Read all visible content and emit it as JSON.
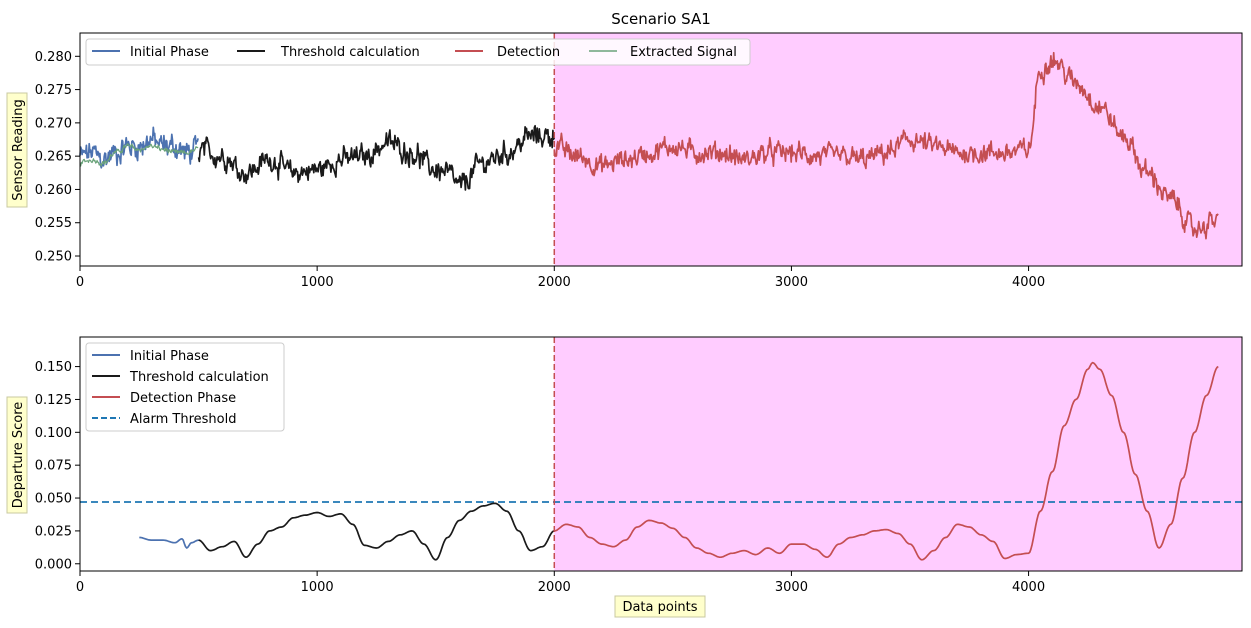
{
  "colors": {
    "initial": "#4c72b0",
    "threshold_calc": "#1a1a1a",
    "detection": "#c44e52",
    "extracted": "#6aa37a",
    "alarm": "#1f77b4",
    "shade": "#ffccff",
    "vline": "#c44e52"
  },
  "chart_data": [
    {
      "type": "line",
      "title": "Scenario SA1",
      "xlabel": "",
      "ylabel": "Sensor Reading",
      "xlim": [
        0,
        4900
      ],
      "ylim": [
        0.2485,
        0.2835
      ],
      "x_ticks": [
        0,
        1000,
        2000,
        3000,
        4000
      ],
      "y_ticks": [
        0.25,
        0.255,
        0.26,
        0.265,
        0.27,
        0.275,
        0.28
      ],
      "y_tick_labels": [
        "0.250",
        "0.255",
        "0.260",
        "0.265",
        "0.270",
        "0.275",
        "0.280"
      ],
      "shaded_region": [
        2000,
        4900
      ],
      "vertical_line": 2000,
      "legend": {
        "placement": "top-left",
        "entries": [
          "Initial Phase",
          "Threshold calculation",
          "Detection",
          "Extracted Signal"
        ]
      },
      "series": [
        {
          "name": "Initial Phase",
          "x": [
            0,
            50,
            100,
            150,
            200,
            250,
            300,
            350,
            400,
            450,
            500
          ],
          "y": [
            0.265,
            0.2655,
            0.2645,
            0.2655,
            0.2665,
            0.2665,
            0.2675,
            0.2665,
            0.2665,
            0.2655,
            0.266
          ],
          "noise": 0.0018
        },
        {
          "name": "Extracted Signal",
          "x": [
            0,
            50,
            100,
            150,
            200,
            250,
            300,
            350,
            400,
            450,
            500
          ],
          "y": [
            0.264,
            0.2645,
            0.264,
            0.2655,
            0.2665,
            0.266,
            0.2665,
            0.266,
            0.2655,
            0.2655,
            0.266
          ],
          "noise": 0.0004
        },
        {
          "name": "Threshold calculation",
          "x": [
            500,
            600,
            700,
            800,
            900,
            1000,
            1100,
            1200,
            1300,
            1400,
            1500,
            1550,
            1600,
            1700,
            1800,
            1900,
            2000
          ],
          "y": [
            0.266,
            0.265,
            0.2625,
            0.2645,
            0.2625,
            0.263,
            0.2645,
            0.265,
            0.267,
            0.2655,
            0.263,
            0.2625,
            0.2605,
            0.264,
            0.2655,
            0.268,
            0.268
          ],
          "noise": 0.0016
        },
        {
          "name": "Detection",
          "x": [
            2000,
            2100,
            2200,
            2300,
            2400,
            2500,
            2600,
            2700,
            2800,
            2900,
            3000,
            3100,
            3200,
            3300,
            3400,
            3500,
            3600,
            3700,
            3800,
            3900,
            4000,
            4050,
            4100,
            4200,
            4300,
            4400,
            4500,
            4600,
            4700,
            4800
          ],
          "y": [
            0.2665,
            0.265,
            0.2635,
            0.2645,
            0.2655,
            0.2665,
            0.2655,
            0.2655,
            0.2645,
            0.2655,
            0.2655,
            0.265,
            0.265,
            0.2645,
            0.2655,
            0.2675,
            0.2665,
            0.2655,
            0.2655,
            0.2655,
            0.266,
            0.278,
            0.2795,
            0.276,
            0.2725,
            0.268,
            0.2625,
            0.2585,
            0.254,
            0.2555
          ],
          "noise": 0.0015
        }
      ]
    },
    {
      "type": "line",
      "title": "",
      "xlabel": "Data points",
      "ylabel": "Departure Score",
      "xlim": [
        0,
        4900
      ],
      "ylim": [
        -0.0055,
        0.1725
      ],
      "x_ticks": [
        0,
        1000,
        2000,
        3000,
        4000
      ],
      "y_ticks": [
        0.0,
        0.025,
        0.05,
        0.075,
        0.1,
        0.125,
        0.15
      ],
      "y_tick_labels": [
        "0.000",
        "0.025",
        "0.050",
        "0.075",
        "0.100",
        "0.125",
        "0.150"
      ],
      "shaded_region": [
        2000,
        4900
      ],
      "vertical_line": 2000,
      "alarm_threshold": 0.047,
      "legend": {
        "placement": "top-left",
        "entries": [
          "Initial Phase",
          "Threshold calculation",
          "Detection Phase",
          "Alarm Threshold"
        ]
      },
      "series": [
        {
          "name": "Initial Phase",
          "x": [
            250,
            300,
            350,
            400,
            430,
            450,
            470,
            500
          ],
          "y": [
            0.02,
            0.018,
            0.018,
            0.016,
            0.019,
            0.012,
            0.016,
            0.018
          ]
        },
        {
          "name": "Threshold calculation",
          "x": [
            500,
            550,
            600,
            650,
            700,
            750,
            800,
            850,
            900,
            950,
            1000,
            1050,
            1100,
            1150,
            1200,
            1250,
            1300,
            1350,
            1400,
            1450,
            1500,
            1550,
            1600,
            1650,
            1700,
            1750,
            1800,
            1850,
            1900,
            1950,
            2000
          ],
          "y": [
            0.018,
            0.01,
            0.013,
            0.017,
            0.005,
            0.015,
            0.025,
            0.028,
            0.035,
            0.037,
            0.039,
            0.036,
            0.038,
            0.03,
            0.014,
            0.012,
            0.017,
            0.022,
            0.025,
            0.015,
            0.003,
            0.02,
            0.033,
            0.04,
            0.044,
            0.046,
            0.04,
            0.025,
            0.01,
            0.013,
            0.025
          ]
        },
        {
          "name": "Detection Phase",
          "x": [
            2000,
            2050,
            2100,
            2150,
            2200,
            2250,
            2300,
            2350,
            2400,
            2450,
            2500,
            2550,
            2600,
            2650,
            2700,
            2750,
            2800,
            2850,
            2900,
            2950,
            3000,
            3050,
            3100,
            3150,
            3200,
            3250,
            3300,
            3350,
            3400,
            3450,
            3500,
            3550,
            3600,
            3650,
            3700,
            3750,
            3800,
            3850,
            3900,
            3950,
            4000,
            4050,
            4100,
            4150,
            4200,
            4250,
            4270,
            4300,
            4350,
            4400,
            4450,
            4500,
            4550,
            4600,
            4650,
            4700,
            4750,
            4800
          ],
          "y": [
            0.025,
            0.03,
            0.028,
            0.02,
            0.015,
            0.013,
            0.018,
            0.028,
            0.033,
            0.031,
            0.027,
            0.02,
            0.012,
            0.008,
            0.005,
            0.008,
            0.01,
            0.007,
            0.012,
            0.008,
            0.015,
            0.015,
            0.011,
            0.005,
            0.015,
            0.02,
            0.022,
            0.025,
            0.026,
            0.023,
            0.015,
            0.003,
            0.01,
            0.02,
            0.03,
            0.028,
            0.022,
            0.017,
            0.004,
            0.007,
            0.008,
            0.04,
            0.07,
            0.105,
            0.125,
            0.148,
            0.153,
            0.148,
            0.128,
            0.1,
            0.068,
            0.04,
            0.012,
            0.03,
            0.065,
            0.1,
            0.128,
            0.15
          ]
        }
      ]
    }
  ]
}
